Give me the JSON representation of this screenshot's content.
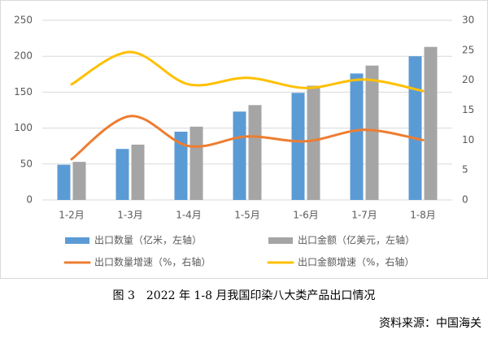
{
  "chart_data": {
    "type": "bar",
    "caption": "图 3　2022 年 1-8 月我国印染八大类产品出口情况",
    "source": "资料来源：中国海关",
    "categories": [
      "1-2月",
      "1-3月",
      "1-4月",
      "1-5月",
      "1-6月",
      "1-7月",
      "1-8月"
    ],
    "series": [
      {
        "name": "出口数量（亿米，左轴）",
        "type": "bar",
        "color": "#5b9bd5",
        "values": [
          49,
          71,
          95,
          123,
          149,
          176,
          200
        ]
      },
      {
        "name": "出口金额（亿美元，左轴）",
        "type": "bar",
        "color": "#a5a5a5",
        "values": [
          53,
          77,
          102,
          132,
          159,
          187,
          213
        ]
      },
      {
        "name": "出口数量增速（%，右轴）",
        "type": "line",
        "axis": "y2",
        "color": "#ed7d31",
        "values": [
          6.8,
          14.0,
          9.0,
          10.6,
          9.8,
          11.7,
          10.0
        ]
      },
      {
        "name": "出口金额增速（%，右轴）",
        "type": "line",
        "axis": "y2",
        "color": "#ffc000",
        "values": [
          19.3,
          24.7,
          19.3,
          20.4,
          18.7,
          20.1,
          18.2
        ]
      }
    ],
    "ylim": [
      0,
      250
    ],
    "yticks": [
      0,
      50,
      100,
      150,
      200,
      250
    ],
    "y2lim": [
      0,
      30
    ],
    "y2ticks": [
      0,
      5,
      10,
      15,
      20,
      25,
      30
    ],
    "grid": true
  }
}
